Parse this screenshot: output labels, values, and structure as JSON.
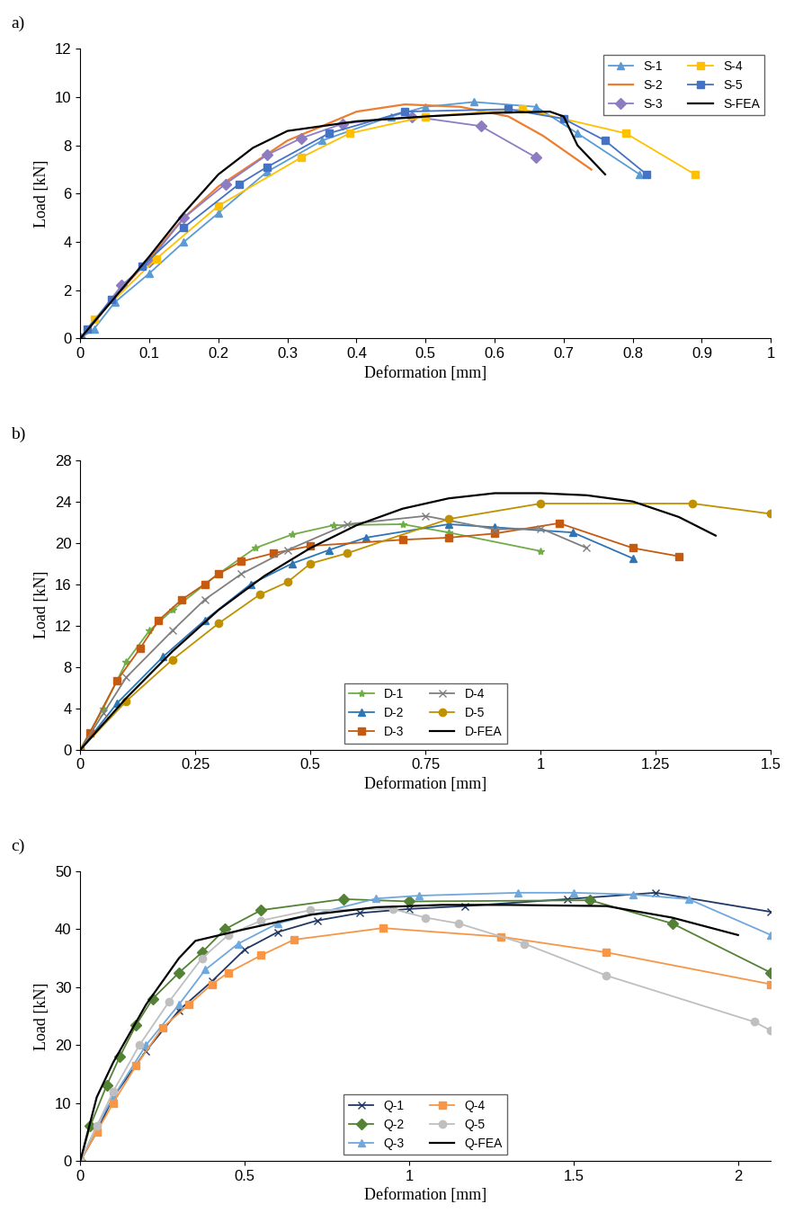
{
  "chart_data": [
    {
      "type": "line",
      "title": "a)",
      "x_label": "Deformation [mm]",
      "y_label": "Load [kN]",
      "xlim": [
        0,
        1
      ],
      "xticks": [
        0,
        0.1,
        0.2,
        0.3,
        0.4,
        0.5,
        0.6,
        0.7,
        0.8,
        0.9,
        1
      ],
      "ylim": [
        0,
        12
      ],
      "yticks": [
        0,
        2,
        4,
        6,
        8,
        10,
        12
      ],
      "legend": "upper right",
      "series": [
        {
          "name": "S-1",
          "color": "#5b9bd5",
          "marker": "triangle",
          "line_style": "solid",
          "x": [
            0,
            0.02,
            0.05,
            0.1,
            0.15,
            0.2,
            0.27,
            0.35,
            0.45,
            0.5,
            0.57,
            0.66,
            0.72,
            0.81
          ],
          "values": [
            0,
            0.4,
            1.5,
            2.7,
            4.0,
            5.2,
            6.9,
            8.2,
            9.2,
            9.6,
            9.8,
            9.6,
            8.5,
            6.8
          ]
        },
        {
          "name": "S-2",
          "color": "#ed7d31",
          "marker": "none",
          "line_style": "solid",
          "x": [
            0,
            0.05,
            0.1,
            0.15,
            0.2,
            0.3,
            0.4,
            0.47,
            0.55,
            0.62,
            0.67,
            0.74
          ],
          "values": [
            0,
            1.7,
            3.3,
            5.0,
            6.3,
            8.2,
            9.4,
            9.7,
            9.6,
            9.2,
            8.4,
            7.0
          ]
        },
        {
          "name": "S-3",
          "color": "#8e7cc3",
          "marker": "diamond",
          "line_style": "solid",
          "x": [
            0,
            0.06,
            0.1,
            0.15,
            0.21,
            0.27,
            0.32,
            0.38,
            0.48,
            0.58,
            0.66
          ],
          "values": [
            0,
            2.2,
            3.2,
            5.0,
            6.4,
            7.6,
            8.3,
            8.9,
            9.2,
            8.8,
            7.5
          ]
        },
        {
          "name": "S-4",
          "color": "#ffc000",
          "marker": "square",
          "line_style": "solid",
          "x": [
            0,
            0.02,
            0.11,
            0.2,
            0.32,
            0.39,
            0.5,
            0.64,
            0.79,
            0.89
          ],
          "values": [
            0,
            0.8,
            3.3,
            5.5,
            7.5,
            8.5,
            9.2,
            9.5,
            8.5,
            6.8
          ]
        },
        {
          "name": "S-5",
          "color": "#4472c4",
          "marker": "square",
          "line_style": "solid",
          "x": [
            0,
            0.01,
            0.045,
            0.09,
            0.15,
            0.23,
            0.27,
            0.36,
            0.47,
            0.62,
            0.7,
            0.76,
            0.82
          ],
          "values": [
            0,
            0.4,
            1.6,
            3.0,
            4.6,
            6.4,
            7.1,
            8.5,
            9.4,
            9.5,
            9.1,
            8.2,
            6.8
          ]
        },
        {
          "name": "S-FEA",
          "color": "#000000",
          "marker": "none",
          "line_style": "solid",
          "x": [
            0,
            0.05,
            0.1,
            0.15,
            0.2,
            0.25,
            0.3,
            0.4,
            0.5,
            0.6,
            0.68,
            0.7,
            0.72,
            0.76
          ],
          "values": [
            0,
            1.7,
            3.4,
            5.2,
            6.8,
            7.9,
            8.6,
            9.0,
            9.2,
            9.35,
            9.4,
            9.2,
            8.0,
            6.8
          ]
        }
      ]
    },
    {
      "type": "line",
      "title": "b)",
      "x_label": "Deformation [mm]",
      "y_label": "Load [kN]",
      "xlim": [
        0,
        1.5
      ],
      "xticks": [
        0,
        0.25,
        0.5,
        0.75,
        1,
        1.25,
        1.5
      ],
      "ylim": [
        0,
        28
      ],
      "yticks": [
        0,
        4,
        8,
        12,
        16,
        20,
        24,
        28
      ],
      "legend": "lower center",
      "series": [
        {
          "name": "D-1",
          "color": "#70ad47",
          "marker": "star",
          "line_style": "solid",
          "x": [
            0,
            0.05,
            0.1,
            0.15,
            0.2,
            0.3,
            0.38,
            0.46,
            0.55,
            0.7,
            0.8,
            1.0
          ],
          "values": [
            0,
            4,
            8.5,
            11.5,
            13.5,
            17,
            19.5,
            20.8,
            21.7,
            21.8,
            21,
            19.2
          ]
        },
        {
          "name": "D-2",
          "color": "#2e75b6",
          "marker": "triangle",
          "line_style": "solid",
          "x": [
            0,
            0.08,
            0.18,
            0.27,
            0.37,
            0.46,
            0.54,
            0.62,
            0.8,
            0.9,
            1.07,
            1.2
          ],
          "values": [
            0,
            4.5,
            9,
            12.5,
            16,
            18,
            19.3,
            20.5,
            21.8,
            21.5,
            21,
            18.5
          ]
        },
        {
          "name": "D-3",
          "color": "#c55a11",
          "marker": "square",
          "line_style": "solid",
          "x": [
            0,
            0.02,
            0.08,
            0.13,
            0.17,
            0.22,
            0.27,
            0.3,
            0.35,
            0.42,
            0.5,
            0.7,
            0.8,
            0.9,
            1.04,
            1.2,
            1.3
          ],
          "values": [
            0,
            1.6,
            6.7,
            9.8,
            12.5,
            14.5,
            16,
            17,
            18.2,
            19,
            19.7,
            20.3,
            20.5,
            20.9,
            21.9,
            19.5,
            18.7
          ]
        },
        {
          "name": "D-4",
          "color": "#7f7f7f",
          "marker": "x",
          "line_style": "solid",
          "x": [
            0,
            0.05,
            0.1,
            0.2,
            0.27,
            0.35,
            0.45,
            0.58,
            0.75,
            0.9,
            1.0,
            1.1
          ],
          "values": [
            0,
            3.5,
            7,
            11.5,
            14.5,
            17,
            19.3,
            21.8,
            22.6,
            21.3,
            21.4,
            19.5
          ]
        },
        {
          "name": "D-5",
          "color": "#bf9000",
          "marker": "circle",
          "line_style": "solid",
          "x": [
            0,
            0.1,
            0.2,
            0.3,
            0.39,
            0.45,
            0.5,
            0.58,
            0.8,
            1.0,
            1.33,
            1.5
          ],
          "values": [
            0,
            4.7,
            8.7,
            12.2,
            15,
            16.2,
            18,
            19,
            22.3,
            23.8,
            23.8,
            22.8
          ]
        },
        {
          "name": "D-FEA",
          "color": "#000000",
          "marker": "none",
          "line_style": "solid",
          "x": [
            0,
            0.1,
            0.2,
            0.3,
            0.4,
            0.5,
            0.6,
            0.7,
            0.8,
            0.9,
            1.0,
            1.1,
            1.2,
            1.3,
            1.38
          ],
          "values": [
            0,
            5,
            9.5,
            13.5,
            16.8,
            19.5,
            21.7,
            23.3,
            24.3,
            24.8,
            24.8,
            24.6,
            24,
            22.5,
            20.7
          ]
        }
      ]
    },
    {
      "type": "line",
      "title": "c)",
      "x_label": "Deformation [mm]",
      "y_label": "Load [kN]",
      "xlim": [
        0,
        2.1
      ],
      "xticks": [
        0,
        0.5,
        1,
        1.5,
        2
      ],
      "ylim": [
        0,
        50
      ],
      "yticks": [
        0,
        10,
        20,
        30,
        40,
        50
      ],
      "legend": "lower center",
      "series": [
        {
          "name": "Q-1",
          "color": "#1f3864",
          "marker": "x",
          "line_style": "solid",
          "x": [
            0,
            0.05,
            0.1,
            0.2,
            0.3,
            0.4,
            0.5,
            0.6,
            0.72,
            0.85,
            1.0,
            1.17,
            1.48,
            1.75,
            2.1
          ],
          "values": [
            0,
            5,
            11,
            19,
            26,
            31,
            36.5,
            39.5,
            41.5,
            42.8,
            43.5,
            44,
            45.2,
            46.3,
            43
          ]
        },
        {
          "name": "Q-2",
          "color": "#548235",
          "marker": "diamond",
          "line_style": "solid",
          "x": [
            0,
            0.03,
            0.08,
            0.12,
            0.17,
            0.22,
            0.3,
            0.37,
            0.44,
            0.55,
            0.8,
            1.0,
            1.55,
            1.8,
            2.1
          ],
          "values": [
            0,
            6,
            13,
            18,
            23.5,
            28,
            32.5,
            36,
            40,
            43.3,
            45.2,
            44.8,
            45,
            41,
            32.5
          ]
        },
        {
          "name": "Q-3",
          "color": "#6fa8dc",
          "marker": "triangle",
          "line_style": "solid",
          "x": [
            0,
            0.05,
            0.1,
            0.2,
            0.3,
            0.38,
            0.48,
            0.6,
            0.9,
            1.03,
            1.33,
            1.5,
            1.68,
            1.85,
            2.1
          ],
          "values": [
            0,
            6,
            11,
            20,
            27,
            33,
            37.5,
            41,
            45.3,
            45.8,
            46.3,
            46.3,
            46,
            45.2,
            39
          ]
        },
        {
          "name": "Q-4",
          "color": "#f79646",
          "marker": "square",
          "line_style": "solid",
          "x": [
            0,
            0.05,
            0.1,
            0.17,
            0.25,
            0.33,
            0.4,
            0.45,
            0.55,
            0.65,
            0.92,
            1.28,
            1.6,
            2.1
          ],
          "values": [
            0,
            5,
            10,
            16.5,
            23,
            27,
            30.5,
            32.5,
            35.5,
            38.2,
            40.2,
            38.7,
            36,
            30.5
          ]
        },
        {
          "name": "Q-5",
          "color": "#bfbfbf",
          "marker": "circle",
          "line_style": "solid",
          "x": [
            0,
            0.05,
            0.1,
            0.18,
            0.27,
            0.37,
            0.45,
            0.55,
            0.7,
            0.95,
            1.05,
            1.15,
            1.35,
            1.6,
            2.05,
            2.1
          ],
          "values": [
            0,
            6,
            12,
            20,
            27.5,
            35,
            39,
            41.5,
            43.3,
            43.5,
            42,
            41,
            37.5,
            32,
            24,
            22.5
          ]
        },
        {
          "name": "Q-FEA",
          "color": "#000000",
          "marker": "none",
          "line_style": "solid",
          "x": [
            0,
            0.05,
            0.1,
            0.2,
            0.3,
            0.35,
            0.5,
            0.7,
            0.9,
            1.1,
            1.3,
            1.6,
            1.8,
            2.0
          ],
          "values": [
            0,
            11,
            17,
            27,
            35,
            38,
            40,
            42.5,
            43.8,
            44.2,
            44.2,
            44,
            42,
            39
          ]
        }
      ]
    }
  ]
}
